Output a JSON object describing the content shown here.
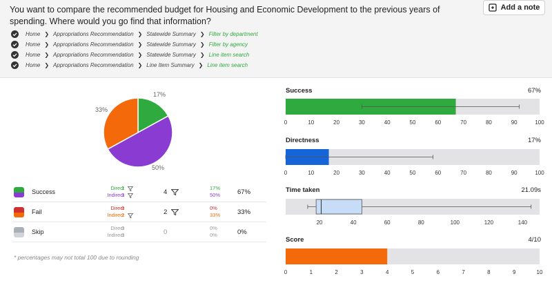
{
  "header": {
    "question": "You want to compare the recommended budget for Housing and Economic Development to the previous years of spending. Where would you go find that information?",
    "add_note_label": "Add a note",
    "paths": [
      [
        "Home",
        "Appropriations Recommendation",
        "Statewide Summary",
        "Filter by department"
      ],
      [
        "Home",
        "Appropriations Recommendation",
        "Statewide Summary",
        "Filter by agency"
      ],
      [
        "Home",
        "Appropriations Recommendation",
        "Statewide Summary",
        "Line item search"
      ],
      [
        "Home",
        "Appropriations Recommendation",
        "Line Item Summary",
        "Line item search"
      ]
    ]
  },
  "pie": {
    "slices": [
      {
        "name": "Direct success",
        "value": 17,
        "label": "17%",
        "color": "#2faa3f"
      },
      {
        "name": "Indirect success",
        "value": 50,
        "label": "50%",
        "color": "#8a3bd1"
      },
      {
        "name": "Fail",
        "value": 33,
        "label": "33%",
        "color": "#f46a0a"
      }
    ]
  },
  "stats": {
    "direct_label": "Direct",
    "indirect_label": "Indirect",
    "rows": [
      {
        "name": "Success",
        "direct": "1",
        "indirect": "3",
        "total": "4",
        "direct_pct": "17%",
        "indirect_pct": "50%",
        "all_pct": "67%",
        "color_top": "#2faa3f",
        "color_bottom": "#8a3bd1",
        "filter": true
      },
      {
        "name": "Fail",
        "direct": "0",
        "indirect": "2",
        "total": "2",
        "direct_pct": "0%",
        "indirect_pct": "33%",
        "all_pct": "33%",
        "color_top": "#d03030",
        "color_bottom": "#f46a0a",
        "filter": true
      },
      {
        "name": "Skip",
        "direct": "0",
        "indirect": "0",
        "total": "0",
        "direct_pct": "0%",
        "indirect_pct": "0%",
        "all_pct": "0%",
        "color_top": "#aab0b8",
        "color_bottom": "#d0d4d9",
        "filter": false
      }
    ],
    "footnote": "* percentages may not total 100 due to rounding"
  },
  "metrics": {
    "success": {
      "title": "Success",
      "value": "67%"
    },
    "directness": {
      "title": "Directness",
      "value": "17%"
    },
    "time_taken": {
      "title": "Time taken",
      "value": "21.09s"
    },
    "score": {
      "title": "Score",
      "value": "4/10"
    }
  },
  "chart_data": [
    {
      "type": "bar",
      "title": "Success",
      "value": 67,
      "whisker": [
        30,
        92
      ],
      "xlim": [
        0,
        100
      ],
      "ticks": [
        0,
        10,
        20,
        30,
        40,
        50,
        60,
        70,
        80,
        90,
        100
      ],
      "color": "#2faa3f"
    },
    {
      "type": "bar",
      "title": "Directness",
      "value": 17,
      "whisker": [
        0,
        58
      ],
      "xlim": [
        0,
        100
      ],
      "ticks": [
        0,
        10,
        20,
        30,
        40,
        50,
        60,
        70,
        80,
        90,
        100
      ],
      "color": "#1565d8"
    },
    {
      "type": "boxplot",
      "title": "Time taken",
      "min": 13,
      "q1": 18,
      "median": 21,
      "q3": 45,
      "max": 145,
      "xlim": [
        0,
        150
      ],
      "ticks": [
        20,
        40,
        60,
        80,
        100,
        120,
        140
      ],
      "color": "#c6dcf7"
    },
    {
      "type": "bar",
      "title": "Score",
      "value": 4,
      "xlim": [
        0,
        10
      ],
      "ticks": [
        0,
        1,
        2,
        3,
        4,
        5,
        6,
        7,
        8,
        9,
        10
      ],
      "color": "#f46a0a"
    }
  ]
}
